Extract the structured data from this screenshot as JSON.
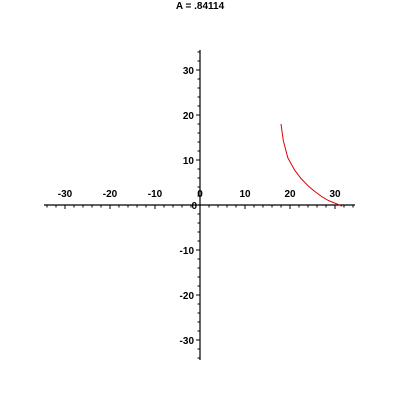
{
  "chart_data": {
    "type": "line",
    "title": "A = .84114",
    "xlabel": "",
    "ylabel": "",
    "xlim": [
      -34,
      34
    ],
    "ylim": [
      -34,
      34
    ],
    "grid": false,
    "axes_through_origin": true,
    "x_ticks": [
      -30,
      -20,
      -10,
      0,
      10,
      20,
      30
    ],
    "y_ticks": [
      -30,
      -20,
      -10,
      0,
      10,
      20,
      30
    ],
    "minor_tick_step": 2,
    "series": [
      {
        "color": "#e00000",
        "x": [
          18.0,
          18.5,
          19.5,
          21.0,
          22.5,
          24.0,
          25.5,
          27.0,
          28.5,
          30.0,
          31.0,
          31.5
        ],
        "y": [
          18.0,
          14.3,
          10.5,
          7.8,
          5.8,
          4.3,
          3.0,
          1.9,
          1.0,
          0.4,
          0.0,
          -0.3
        ]
      }
    ]
  }
}
